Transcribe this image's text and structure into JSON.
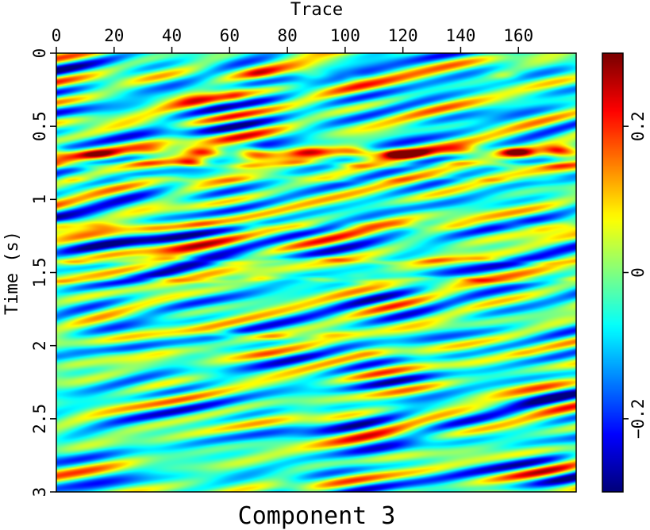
{
  "chart_data": {
    "type": "heatmap",
    "title": "Component 3",
    "xlabel": "Trace",
    "ylabel": "Time (s)",
    "x_axis_position": "top",
    "xlim": [
      0,
      180
    ],
    "ylim": [
      0,
      3
    ],
    "y_inverted": true,
    "x_ticks": [
      0,
      20,
      40,
      60,
      80,
      100,
      120,
      140,
      160
    ],
    "x_tick_labels": [
      "0",
      "20",
      "40",
      "60",
      "80",
      "100",
      "120",
      "140",
      "160"
    ],
    "y_ticks": [
      0,
      0.5,
      1,
      1.5,
      2,
      2.5,
      3
    ],
    "y_tick_labels": [
      "0",
      "0.5",
      "1",
      "1.5",
      "2",
      "2.5",
      "3"
    ],
    "colorscale": "jet",
    "colorbar": {
      "position": "right",
      "range": [
        -0.3,
        0.3
      ],
      "ticks": [
        -0.2,
        0,
        0.2
      ],
      "tick_labels": [
        "−0.2",
        "0",
        "0.2"
      ]
    },
    "background_value": -0.04,
    "features": [
      {
        "kind": "band",
        "time": 0.68,
        "trace_start": 0,
        "trace_end": 180,
        "amplitude": 0.23,
        "width_s": 0.035
      },
      {
        "kind": "band",
        "time": 0.76,
        "trace_start": 0,
        "trace_end": 180,
        "amplitude": 0.12,
        "width_s": 0.022
      },
      {
        "kind": "band",
        "time": 0.86,
        "trace_start": 0,
        "trace_end": 180,
        "amplitude": 0.06,
        "width_s": 0.02
      },
      {
        "kind": "band",
        "time": 1.18,
        "trace_start": 0,
        "trace_end": 180,
        "amplitude": 0.08,
        "width_s": 0.03
      },
      {
        "kind": "band",
        "time": 1.42,
        "trace_start": 0,
        "trace_end": 180,
        "amplitude": 0.09,
        "width_s": 0.018
      },
      {
        "kind": "band",
        "time": 1.55,
        "trace_start": 0,
        "trace_end": 180,
        "amplitude": 0.08,
        "width_s": 0.018
      },
      {
        "kind": "band",
        "time": 1.93,
        "trace_start": 55,
        "trace_end": 100,
        "amplitude": 0.12,
        "width_s": 0.025
      },
      {
        "kind": "band",
        "time": 2.05,
        "trace_start": 0,
        "trace_end": 180,
        "amplitude": 0.04,
        "width_s": 0.03
      },
      {
        "kind": "band",
        "time": 0.15,
        "trace_start": 70,
        "trace_end": 100,
        "amplitude": 0.1,
        "width_s": 0.04
      },
      {
        "kind": "band",
        "time": 0.3,
        "trace_start": 40,
        "trace_end": 60,
        "amplitude": 0.1,
        "width_s": 0.08
      },
      {
        "kind": "spot",
        "time": 0.66,
        "trace": 66,
        "amplitude": 0.28
      },
      {
        "kind": "spot",
        "time": 0.74,
        "trace": 47,
        "amplitude": 0.3
      },
      {
        "kind": "spot",
        "time": 0.68,
        "trace": 117,
        "amplitude": 0.29
      },
      {
        "kind": "spot",
        "time": 0.66,
        "trace": 174,
        "amplitude": 0.3
      },
      {
        "kind": "spot",
        "time": 0.67,
        "trace": 160,
        "amplitude": 0.24
      },
      {
        "kind": "spot",
        "time": 0.15,
        "trace": 155,
        "amplitude": 0.2
      },
      {
        "kind": "spot",
        "time": 1.18,
        "trace": 2,
        "amplitude": 0.18
      },
      {
        "kind": "spot",
        "time": 1.2,
        "trace": 168,
        "amplitude": 0.18
      },
      {
        "kind": "spot",
        "time": 1.53,
        "trace": 70,
        "amplitude": 0.17
      },
      {
        "kind": "spot",
        "time": 1.53,
        "trace": 105,
        "amplitude": 0.17
      },
      {
        "kind": "spot",
        "time": 0.85,
        "trace": 4,
        "amplitude": 0.17
      },
      {
        "kind": "spot",
        "time": 0.88,
        "trace": 122,
        "amplitude": 0.14
      }
    ]
  }
}
